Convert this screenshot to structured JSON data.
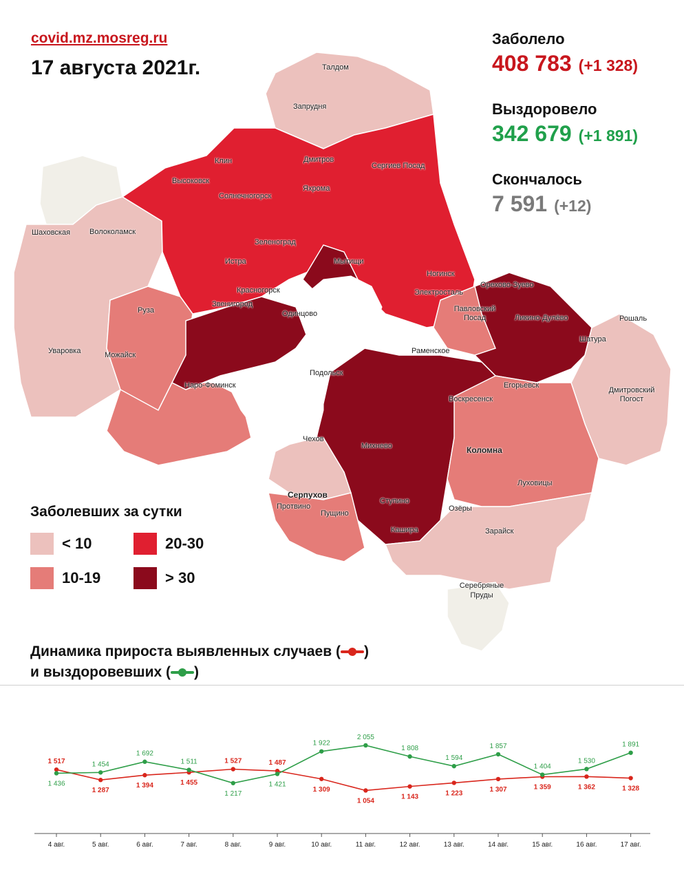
{
  "header": {
    "source": "covid.mz.mosreg.ru",
    "date": "17 августа 2021г."
  },
  "stats": {
    "infected": {
      "label": "Заболело",
      "total": "408 783",
      "delta": "(+1 328)"
    },
    "recovered": {
      "label": "Выздоровело",
      "total": "342 679",
      "delta": "(+1 891)"
    },
    "died": {
      "label": "Скончалось",
      "total": "7 591",
      "delta": "(+12)"
    }
  },
  "colors": {
    "lt10": "#ecc1bd",
    "c10_19": "#e57c78",
    "c20_30": "#e01f30",
    "gt30": "#8b0a1c",
    "none": "#f1efe8",
    "infected_line": "#d9261c",
    "recovered_line": "#2e9e48"
  },
  "map": {
    "labels": {
      "taldom": "Талдом",
      "zaprudnya": "Запрудня",
      "klin": "Клин",
      "dmitrov": "Дмитров",
      "sergiev_posad": "Сергиев Посад",
      "vysokovsk": "Высоковск",
      "yakhroma": "Яхрома",
      "solnechnogorsk": "Солнечногорск",
      "shakhovskaya": "Шаховская",
      "volokolamsk": "Волоколамск",
      "zelenograd": "Зеленоград",
      "istra": "Истра",
      "mytishchi": "Мытищи",
      "noginsk": "Ногинск",
      "krasnogorsk": "Красногорск",
      "elektrostal": "Электросталь",
      "orekhovo_zuevo": "Орехово-Зуево",
      "zvenigorod": "Звенигород",
      "odintsovo": "Одинцово",
      "pavlovsky_posad": "Павловский Посад",
      "likino_dulevo": "Ликино-Дулёво",
      "ruza": "Руза",
      "roshal": "Рошаль",
      "shatura": "Шатура",
      "ramenskoe": "Раменское",
      "uvarovka": "Уваровка",
      "mozhaysk": "Можайск",
      "podolsk": "Подольск",
      "egoryevsk": "Егорьевск",
      "naro_fominsk": "Наро-Фоминск",
      "voskresensk": "Воскресенск",
      "dmitrovsky_pogost": "Дмитровский Погост",
      "chekhov": "Чехов",
      "mikhnevo": "Михнево",
      "kolomna": "Коломна",
      "lukhovitsy": "Луховицы",
      "serpukhov": "Серпухов",
      "protvino": "Протвино",
      "pushchino": "Пущино",
      "stupino": "Ступино",
      "ozyory": "Озёры",
      "kashira": "Кашира",
      "zaraysk": "Зарайск",
      "serebryanye_prudy": "Серебряные Пруды"
    }
  },
  "legend": {
    "title": "Заболевших за сутки",
    "items": [
      {
        "label": "< 10",
        "color": "#ecc1bd"
      },
      {
        "label": "20-30",
        "color": "#e01f30"
      },
      {
        "label": "10-19",
        "color": "#e57c78"
      },
      {
        "label": "> 30",
        "color": "#8b0a1c"
      }
    ]
  },
  "chart_title": {
    "line1": "Динамика прироста выявленных случаев (",
    "line2": "и выздоровевших ("
  },
  "chart_data": {
    "type": "line",
    "categories": [
      "4 авг.",
      "5 авг.",
      "6 авг.",
      "7 авг.",
      "8 авг.",
      "9 авг.",
      "10 авг.",
      "11 авг.",
      "12 авг.",
      "13 авг.",
      "14 авг.",
      "15 авг.",
      "16 авг.",
      "17 авг."
    ],
    "series": [
      {
        "key": "infected",
        "color": "#d9261c",
        "values": [
          1517,
          1287,
          1394,
          1455,
          1527,
          1487,
          1309,
          1054,
          1143,
          1223,
          1307,
          1359,
          1362,
          1328
        ],
        "labels": [
          "1 517",
          "1 287",
          "1 394",
          "1 455",
          "1 527",
          "1 487",
          "1 309",
          "1 054",
          "1 143",
          "1 223",
          "1 307",
          "1 359",
          "1 362",
          "1 328"
        ]
      },
      {
        "key": "recovered",
        "color": "#2e9e48",
        "values": [
          1436,
          1454,
          1692,
          1511,
          1217,
          1421,
          1922,
          2055,
          1808,
          1594,
          1857,
          1404,
          1530,
          1891
        ],
        "labels": [
          "1 436",
          "1 454",
          "1 692",
          "1 511",
          "1 217",
          "1 421",
          "1 922",
          "2 055",
          "1 808",
          "1 594",
          "1 857",
          "1 404",
          "1 530",
          "1 891"
        ]
      }
    ],
    "ylim": [
      0,
      2500
    ],
    "grid": false,
    "legend": "none"
  }
}
